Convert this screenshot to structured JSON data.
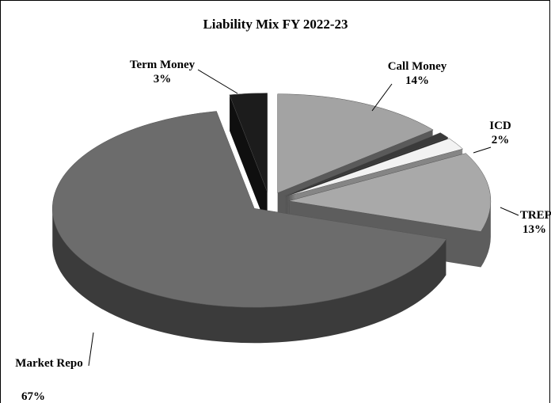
{
  "chart_data": {
    "type": "pie3d",
    "title": "Liability Mix FY 2022-23",
    "categories": [
      "Call Money",
      null,
      "ICD",
      "TREPS",
      "Market Repo",
      "Term Money"
    ],
    "values": [
      14,
      1,
      2,
      13,
      67,
      3
    ],
    "value_labels": [
      "14%",
      null,
      "2%",
      "13%",
      "67%",
      "3%"
    ],
    "colors": [
      "#a3a3a3",
      "#3a3a3a",
      "#f2f2f2",
      "#a9a9a9",
      "#6c6c6c",
      "#1c1c1c"
    ]
  }
}
